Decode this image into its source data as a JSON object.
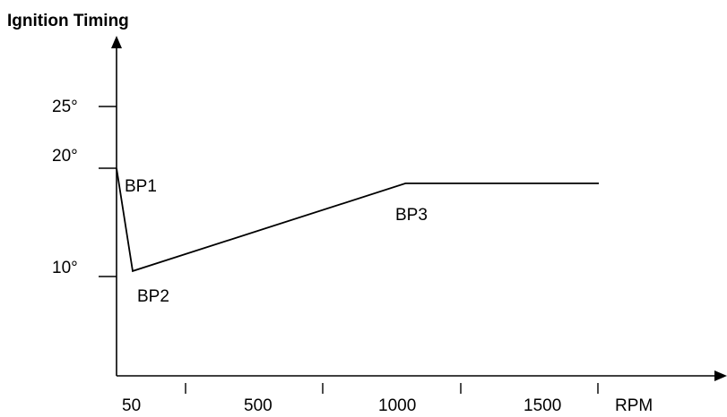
{
  "chart_data": {
    "type": "line",
    "title": "Ignition Timing",
    "ylabel": "",
    "xlabel": "RPM",
    "x_ticks": [
      "50",
      "500",
      "1000",
      "1500"
    ],
    "y_ticks": [
      "10°",
      "20°",
      "25°"
    ],
    "series": [
      {
        "points": [
          {
            "x": 0,
            "y": 20
          },
          {
            "x": 50,
            "y": 10.5
          },
          {
            "x": 1050,
            "y": 18.6
          },
          {
            "x": 1750,
            "y": 18.6
          }
        ]
      }
    ],
    "annotations": [
      "BP1",
      "BP2",
      "BP3"
    ],
    "grid": false
  }
}
